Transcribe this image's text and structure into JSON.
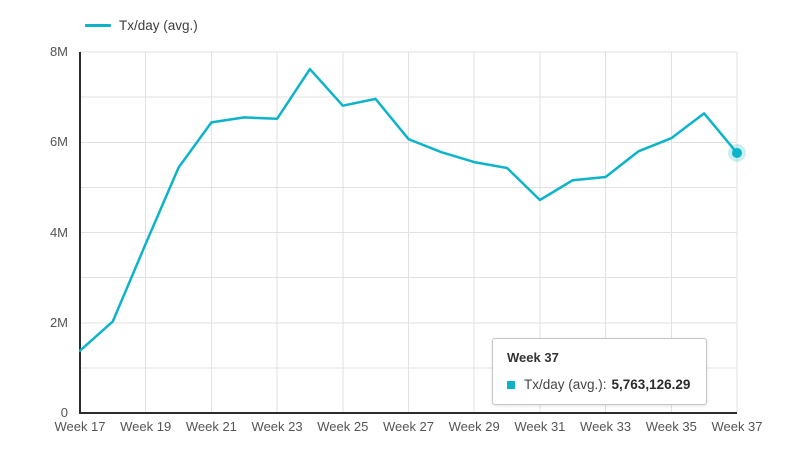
{
  "legend": {
    "label": "Tx/day (avg.)"
  },
  "colors": {
    "line": "#0db4c9",
    "grid": "#e2e2e2",
    "axis": "#2c2c2c",
    "tick_label": "#555555"
  },
  "chart_data": {
    "type": "line",
    "title": "",
    "xlabel": "",
    "ylabel": "",
    "series_name": "Tx/day (avg.)",
    "categories": [
      "Week 17",
      "Week 18",
      "Week 19",
      "Week 20",
      "Week 21",
      "Week 22",
      "Week 23",
      "Week 24",
      "Week 25",
      "Week 26",
      "Week 27",
      "Week 28",
      "Week 29",
      "Week 30",
      "Week 31",
      "Week 32",
      "Week 33",
      "Week 34",
      "Week 35",
      "Week 36",
      "Week 37"
    ],
    "values": [
      1380000,
      2030000,
      3750000,
      5440000,
      6440000,
      6550000,
      6520000,
      7620000,
      6810000,
      6960000,
      6070000,
      5780000,
      5560000,
      5430000,
      4720000,
      5160000,
      5230000,
      5800000,
      6090000,
      6640000,
      5763126.29
    ],
    "x_tick_labels": [
      "Week 17",
      "Week 19",
      "Week 21",
      "Week 23",
      "Week 25",
      "Week 27",
      "Week 29",
      "Week 31",
      "Week 33",
      "Week 35",
      "Week 37"
    ],
    "y_tick_labels": [
      "0",
      "2M",
      "4M",
      "6M",
      "8M"
    ],
    "y_tick_values": [
      0,
      2000000,
      4000000,
      6000000,
      8000000
    ],
    "ylim": [
      0,
      8000000
    ],
    "y_grid_step": 1000000,
    "x_grid_every": 2,
    "grid": true,
    "legend_position": "top-left",
    "highlight_point": {
      "category": "Week 37",
      "value": 5763126.29
    }
  },
  "tooltip": {
    "title": "Week 37",
    "series_label": "Tx/day (avg.):",
    "value": "5,763,126.29"
  }
}
